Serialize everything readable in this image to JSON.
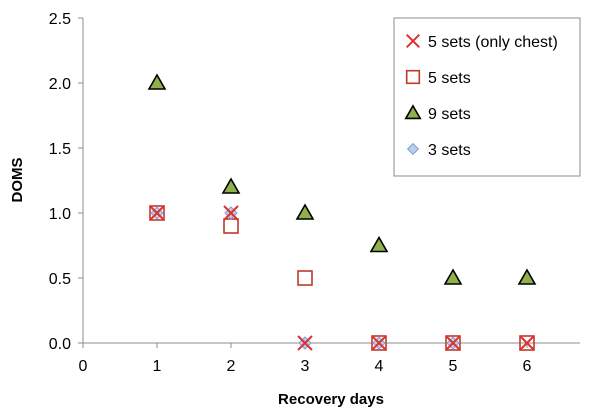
{
  "chart_data": {
    "type": "scatter",
    "title": "",
    "xlabel": "Recovery days",
    "ylabel": "DOMS",
    "xlim": [
      0,
      6.8
    ],
    "ylim": [
      0,
      2.5
    ],
    "xticks": [
      "0",
      "1",
      "2",
      "3",
      "4",
      "5",
      "6"
    ],
    "xtick_values": [
      0,
      1,
      2,
      3,
      4,
      5,
      6
    ],
    "yticks": [
      "0.0",
      "0.5",
      "1.0",
      "1.5",
      "2.0",
      "2.5"
    ],
    "ytick_values": [
      0,
      0.5,
      1.0,
      1.5,
      2.0,
      2.5
    ],
    "grid": false,
    "legend_position": "top-right",
    "series": [
      {
        "name": "5 sets (only chest)",
        "marker": "x",
        "color": "#e03030",
        "x": [
          1,
          2,
          3,
          4,
          5,
          6
        ],
        "y": [
          1.0,
          1.0,
          0.0,
          0.0,
          0.0,
          0.0
        ]
      },
      {
        "name": "5 sets",
        "marker": "square",
        "color": "#c0392b",
        "x": [
          1,
          2,
          3,
          4,
          5,
          6
        ],
        "y": [
          1.0,
          0.9,
          0.5,
          0.0,
          0.0,
          0.0
        ]
      },
      {
        "name": "9 sets",
        "marker": "triangle",
        "color": "#8fb04a",
        "x": [
          1,
          2,
          3,
          4,
          5,
          6
        ],
        "y": [
          2.0,
          1.2,
          1.0,
          0.75,
          0.5,
          0.5
        ]
      },
      {
        "name": "3 sets",
        "marker": "diamond",
        "color": "#a9c4e8",
        "x": [
          1,
          2,
          3,
          4,
          5
        ],
        "y": [
          1.0,
          1.0,
          0.0,
          0.0,
          0.0
        ]
      }
    ]
  }
}
